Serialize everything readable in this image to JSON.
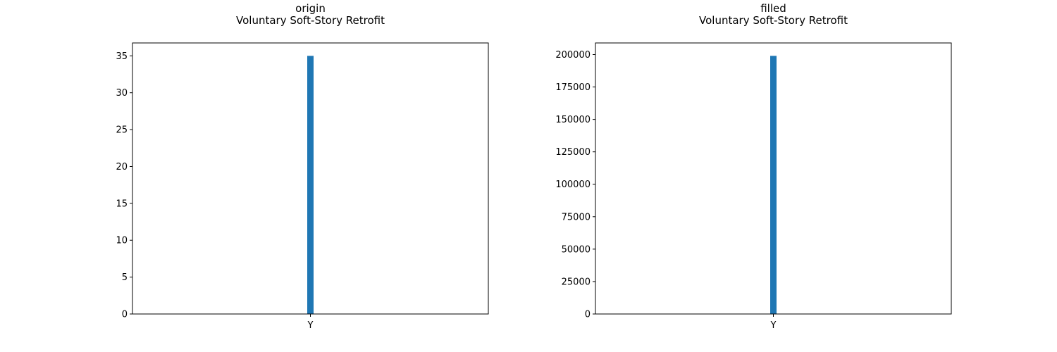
{
  "chart_data": [
    {
      "type": "bar",
      "title_line1": "origin",
      "title_line2": "Voluntary Soft-Story Retrofit",
      "xlabel": "",
      "ylabel": "",
      "categories": [
        "Y"
      ],
      "values": [
        35
      ],
      "ylim": [
        0,
        36.75
      ],
      "yticks": [
        0,
        5,
        10,
        15,
        20,
        25,
        30,
        35
      ],
      "ytick_labels": [
        "0",
        "5",
        "10",
        "15",
        "20",
        "25",
        "30",
        "35"
      ],
      "bar_color": "#1f77b4",
      "grid": false,
      "legend": "none"
    },
    {
      "type": "bar",
      "title_line1": "filled",
      "title_line2": "Voluntary Soft-Story Retrofit",
      "xlabel": "",
      "ylabel": "",
      "categories": [
        "Y"
      ],
      "values": [
        199000
      ],
      "ylim": [
        0,
        208950
      ],
      "yticks": [
        0,
        25000,
        50000,
        75000,
        100000,
        125000,
        150000,
        175000,
        200000
      ],
      "ytick_labels": [
        "0",
        "25000",
        "50000",
        "75000",
        "100000",
        "125000",
        "150000",
        "175000",
        "200000"
      ],
      "bar_color": "#1f77b4",
      "grid": false,
      "legend": "none"
    }
  ]
}
